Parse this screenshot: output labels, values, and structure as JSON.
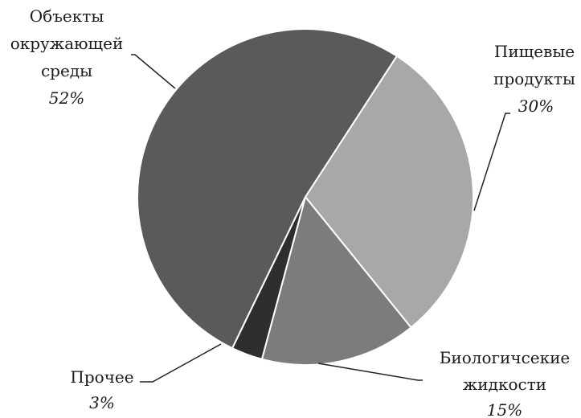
{
  "chart_data": {
    "type": "pie",
    "title": "",
    "slices": [
      {
        "name": "Объекты окружающей среды",
        "label_lines": [
          "Объекты",
          "окружающей",
          "среды"
        ],
        "pct_label": "52%",
        "value": 52,
        "color": "#5a5a5c"
      },
      {
        "name": "Пищевые продукты",
        "label_lines": [
          "Пищевые",
          "продукты"
        ],
        "pct_label": "30%",
        "value": 30,
        "color": "#a7a8aa"
      },
      {
        "name": "Биологичсекие жидкости",
        "label_lines": [
          "Биологичсекие",
          "жидкости"
        ],
        "pct_label": "15%",
        "value": 15,
        "color": "#7b7c7e"
      },
      {
        "name": "Прочее",
        "label_lines": [
          "Прочее"
        ],
        "pct_label": "3%",
        "value": 3,
        "color": "#2e2e30"
      }
    ]
  }
}
